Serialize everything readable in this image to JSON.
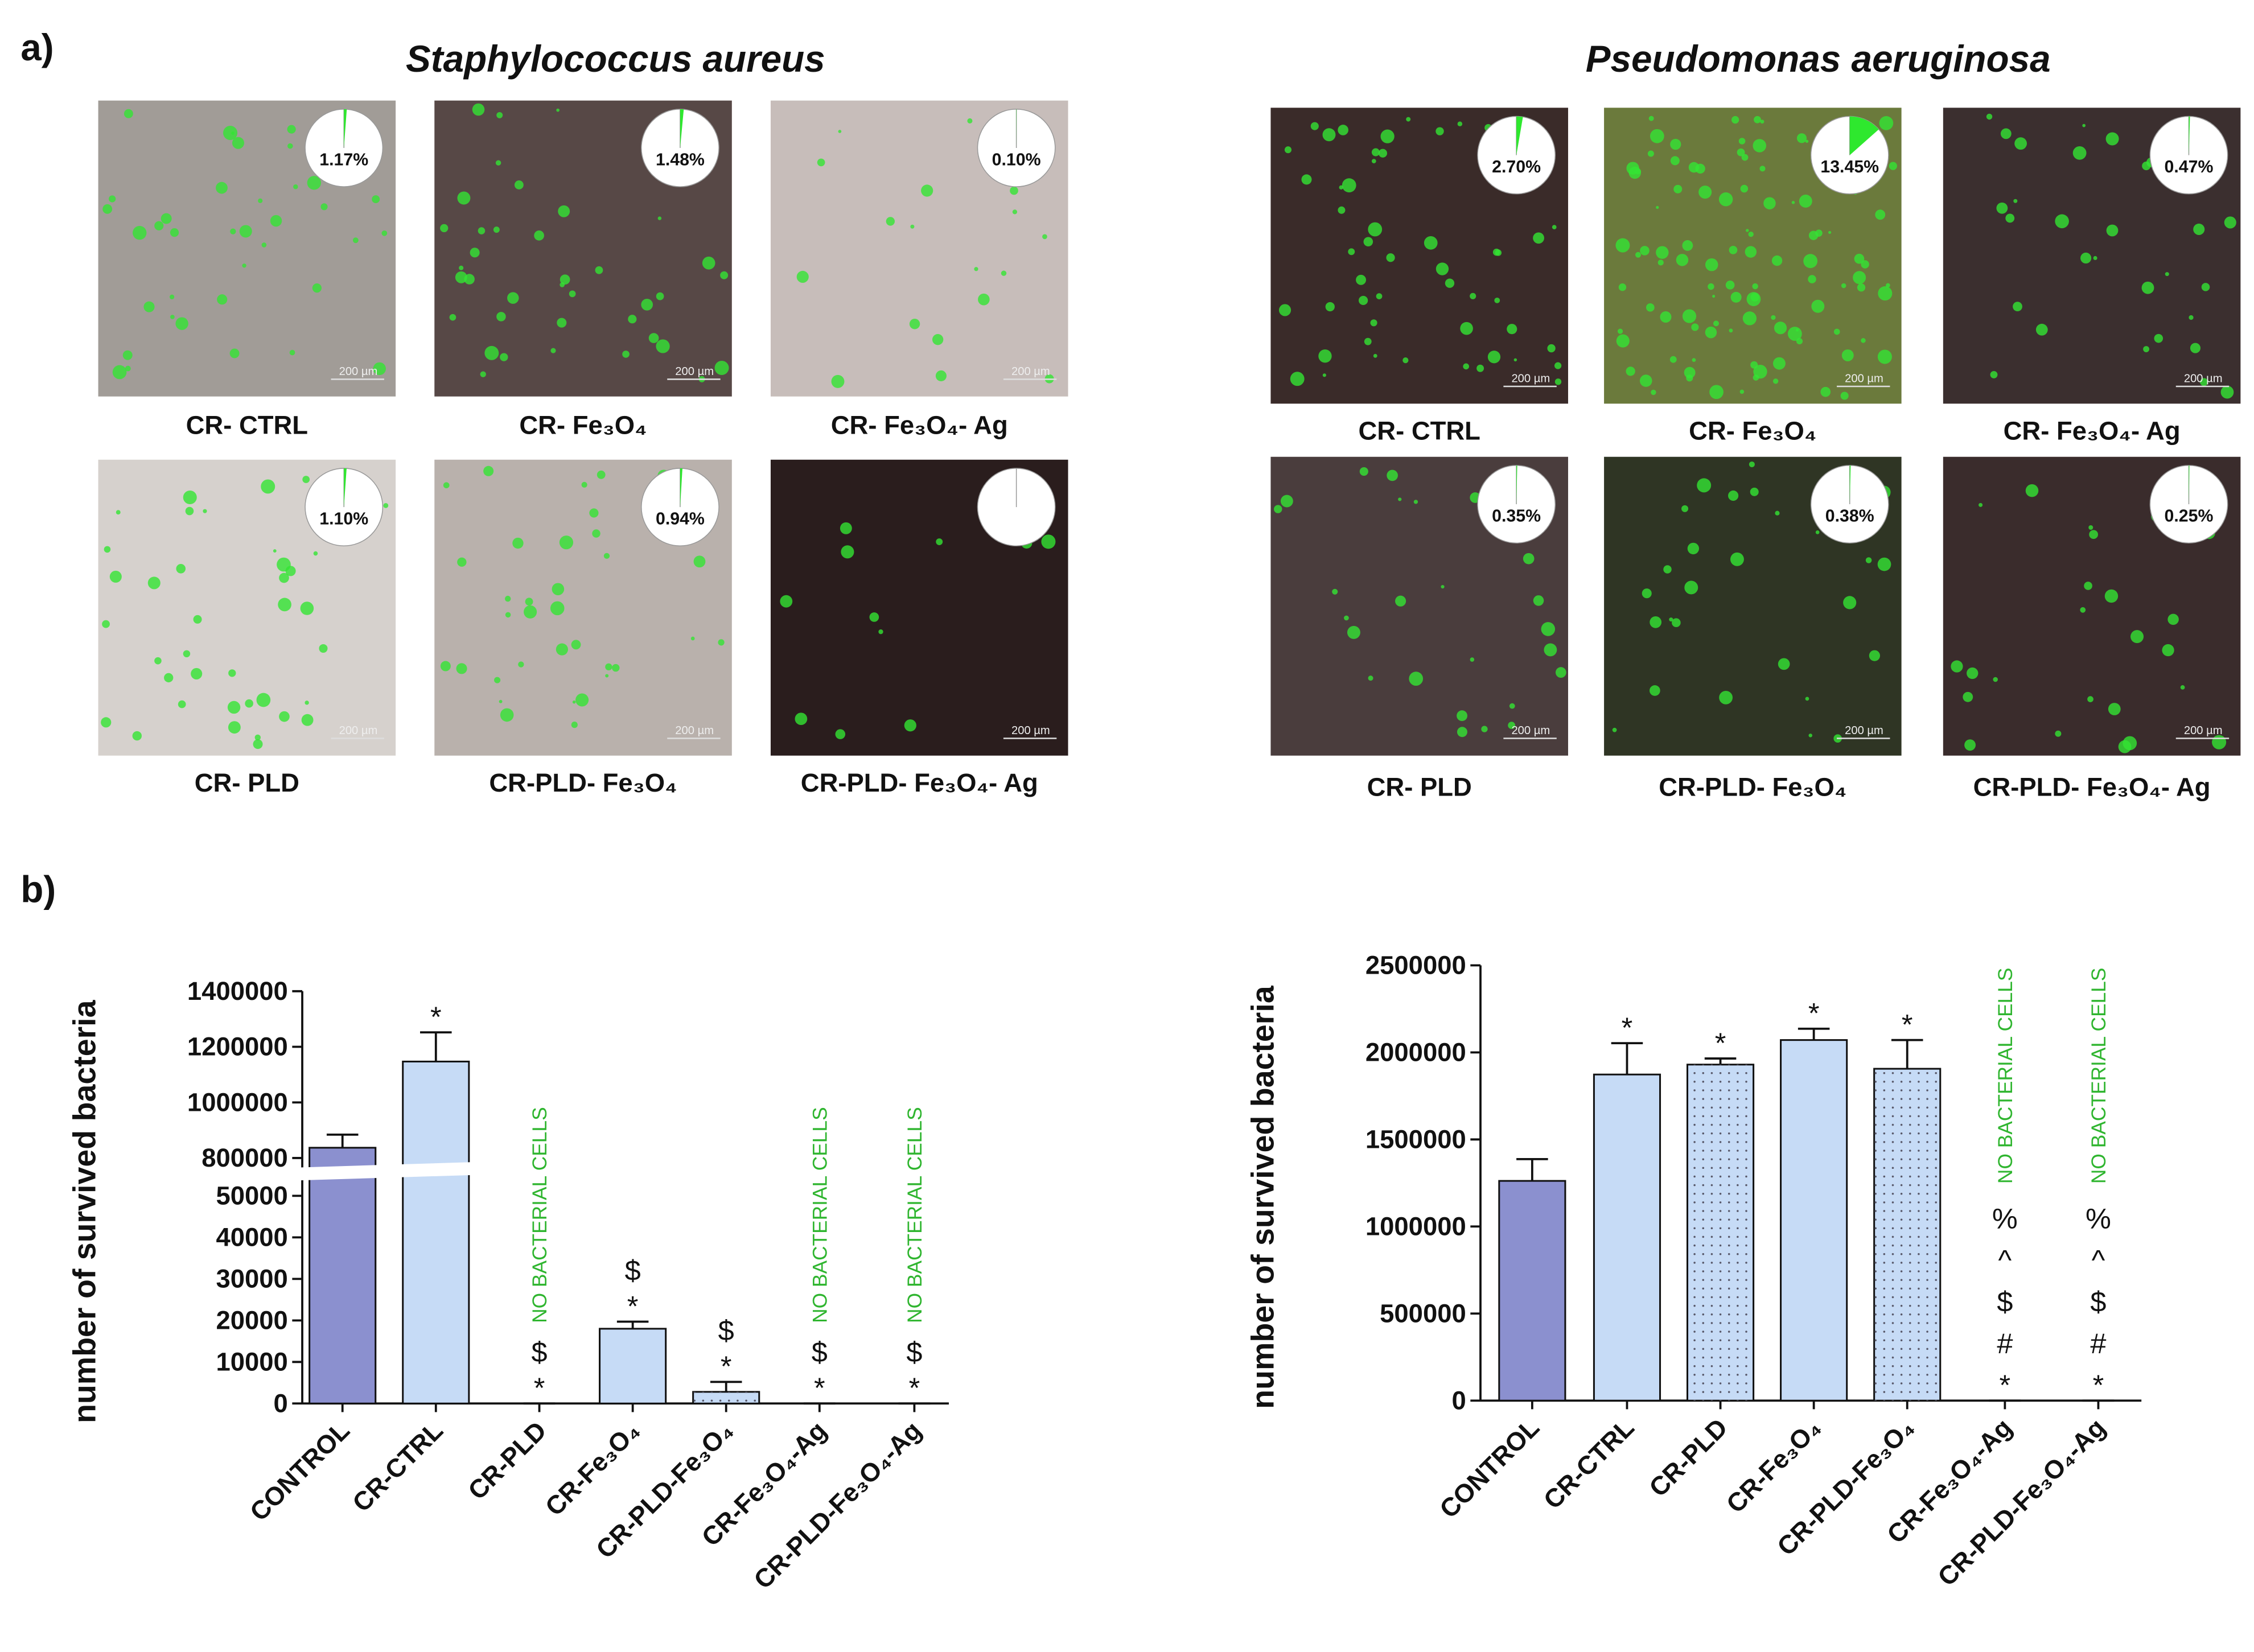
{
  "panel_labels": [
    "a)",
    "b)"
  ],
  "micrographs": [
    {
      "title": "Staphylococcus aureus",
      "images": [
        {
          "label": "CR- CTRL",
          "coverage": 1.17,
          "coverage_label": "1.17%",
          "scale_bar": "200 µm"
        },
        {
          "label": "CR- Fe₃O₄",
          "coverage": 1.48,
          "coverage_label": "1.48%",
          "scale_bar": "200 µm"
        },
        {
          "label": "CR- Fe₃O₄- Ag",
          "coverage": 0.1,
          "coverage_label": "0.10%",
          "scale_bar": "200 µm"
        },
        {
          "label": "CR- PLD",
          "coverage": 1.1,
          "coverage_label": "1.10%",
          "scale_bar": "200 µm"
        },
        {
          "label": "CR-PLD- Fe₃O₄",
          "coverage": 0.94,
          "coverage_label": "0.94%",
          "scale_bar": "200 µm"
        },
        {
          "label": "CR-PLD- Fe₃O₄- Ag",
          "coverage": 0,
          "scale_bar": "200 µm"
        }
      ]
    },
    {
      "title": "Pseudomonas aeruginosa",
      "images": [
        {
          "label": "CR- CTRL",
          "coverage": 2.7,
          "coverage_label": "2.70%",
          "scale_bar": "200 µm"
        },
        {
          "label": "CR- Fe₃O₄",
          "coverage": 13.45,
          "coverage_label": "13.45%",
          "scale_bar": "200 µm"
        },
        {
          "label": "CR- Fe₃O₄- Ag",
          "coverage": 0.47,
          "coverage_label": "0.47%",
          "scale_bar": "200 µm"
        },
        {
          "label": "CR- PLD",
          "coverage": 0.35,
          "coverage_label": "0.35%",
          "scale_bar": "200 µm"
        },
        {
          "label": "CR-PLD- Fe₃O₄",
          "coverage": 0.38,
          "coverage_label": "0.38%",
          "scale_bar": "200 µm"
        },
        {
          "label": "CR-PLD- Fe₃O₄- Ag",
          "coverage": 0.25,
          "coverage_label": "0.25%",
          "scale_bar": "200 µm"
        }
      ]
    }
  ],
  "chart_data": [
    {
      "type": "bar",
      "ylabel": "number of survived bacteria",
      "categories": [
        "CONTROL",
        "CR-CTRL",
        "CR-PLD",
        "CR-Fe₃O₄",
        "CR-PLD-Fe₃O₄",
        "CR-Fe₃O₄-Ag",
        "CR-PLD-Fe₃O₄-Ag"
      ],
      "values": [
        837000,
        1147000,
        0,
        18000,
        2800,
        0,
        0
      ],
      "errors": [
        47000,
        105000,
        0,
        1700,
        2400,
        0,
        0
      ],
      "colors": [
        "#8b90cf",
        "#c6dbf6",
        "#c6dbf6",
        "#c6dbf6",
        "#c6dbf6",
        "#c6dbf6",
        "#c6dbf6"
      ],
      "dotted": [
        false,
        false,
        false,
        false,
        true,
        false,
        false
      ],
      "annotations": [
        [],
        [
          "*"
        ],
        [
          "*",
          "$"
        ],
        [
          "*",
          "$"
        ],
        [
          "*",
          "$"
        ],
        [
          "*",
          "$"
        ],
        [
          "*",
          "$"
        ]
      ],
      "notes": [
        null,
        null,
        "NO BACTERIAL CELLS",
        null,
        null,
        "NO BACTERIAL CELLS",
        "NO BACTERIAL CELLS"
      ],
      "ylim": [
        0,
        1400000
      ],
      "axis_break": [
        55000,
        780000
      ],
      "yticks": [
        0,
        10000,
        20000,
        30000,
        40000,
        50000,
        800000,
        1000000,
        1200000,
        1400000
      ]
    },
    {
      "type": "bar",
      "ylabel": "number of survived bacteria",
      "categories": [
        "CONTROL",
        "CR-CTRL",
        "CR-PLD",
        "CR-Fe₃O₄",
        "CR-PLD-Fe₃O₄",
        "CR-Fe₃O₄-Ag",
        "CR-PLD-Fe₃O₄-Ag"
      ],
      "values": [
        1262000,
        1873000,
        1930000,
        2071000,
        1906000,
        0,
        0
      ],
      "errors": [
        125000,
        180000,
        35000,
        65000,
        165000,
        0,
        0
      ],
      "colors": [
        "#8b90cf",
        "#c6dbf6",
        "#c6dbf6",
        "#c6dbf6",
        "#c6dbf6",
        "#c6dbf6",
        "#c6dbf6"
      ],
      "dotted": [
        false,
        false,
        true,
        false,
        true,
        false,
        false
      ],
      "annotations": [
        [],
        [
          "*"
        ],
        [
          "*"
        ],
        [
          "*"
        ],
        [
          "*"
        ],
        [
          "*",
          "#",
          "$",
          "^",
          "%"
        ],
        [
          "*",
          "#",
          "$",
          "^",
          "%"
        ]
      ],
      "notes": [
        null,
        null,
        null,
        null,
        null,
        "NO BACTERIAL CELLS",
        "NO BACTERIAL CELLS"
      ],
      "ylim": [
        0,
        2500000
      ],
      "yticks": [
        0,
        500000,
        1000000,
        1500000,
        2000000,
        2500000
      ]
    }
  ]
}
